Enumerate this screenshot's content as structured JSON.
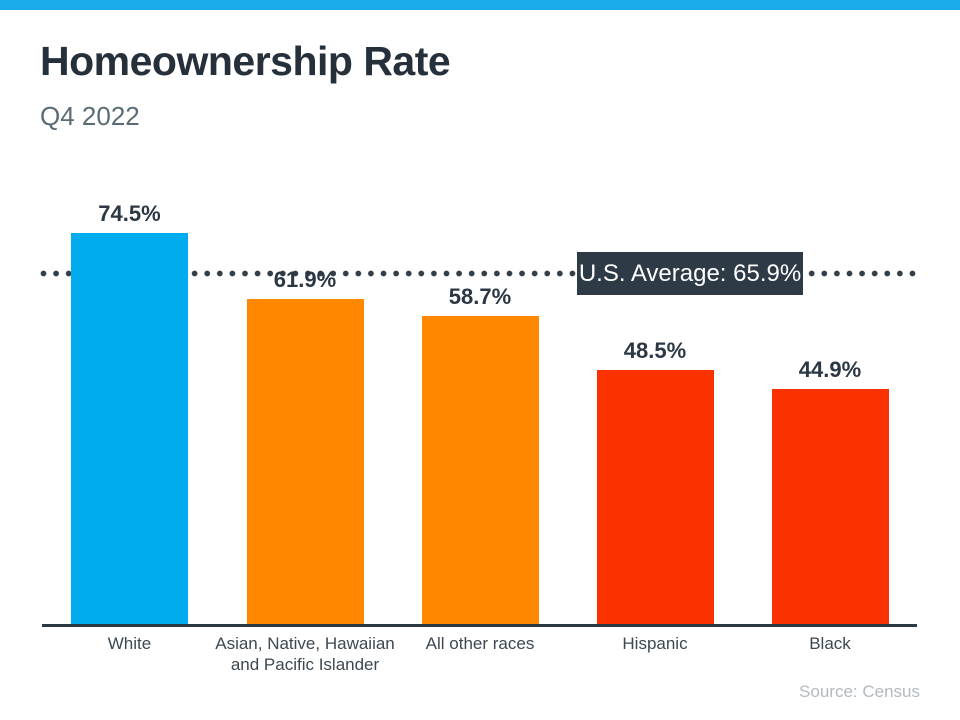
{
  "page": {
    "title": "Homeownership Rate",
    "subtitle": "Q4 2022",
    "source": "Source: Census"
  },
  "chart_data": {
    "type": "bar",
    "title": "Homeownership Rate",
    "subtitle": "Q4 2022",
    "categories": [
      "White",
      "Asian, Native, Hawaiian and Pacific Islander",
      "All other races",
      "Hispanic",
      "Black"
    ],
    "values": [
      74.5,
      61.9,
      58.7,
      48.5,
      44.9
    ],
    "value_labels": [
      "74.5%",
      "61.9%",
      "58.7%",
      "48.5%",
      "44.9%"
    ],
    "bar_colors": [
      "#00ACEE",
      "#FF8800",
      "#FF8800",
      "#FA3200",
      "#FA3200"
    ],
    "average_line": {
      "label": "U.S. Average: 65.9%",
      "value": 65.9,
      "style": "dotted"
    },
    "xlabel": "",
    "ylabel": "",
    "ylim": [
      0,
      100
    ],
    "grid": false,
    "legend": false,
    "source": "Source: Census"
  },
  "colors": {
    "top_strip": "#19ABEC",
    "title": "#25303B",
    "subtitle": "#5A6B75",
    "value_label": "#2B3743",
    "axis_line": "#2B3743",
    "dotted_line": "#333E48",
    "average_box_bg": "#2E3A45",
    "average_box_text": "#FFFFFF",
    "category_label": "#3C4852",
    "source": "#B3BAC1",
    "page_bg": "#FFFFFF"
  }
}
